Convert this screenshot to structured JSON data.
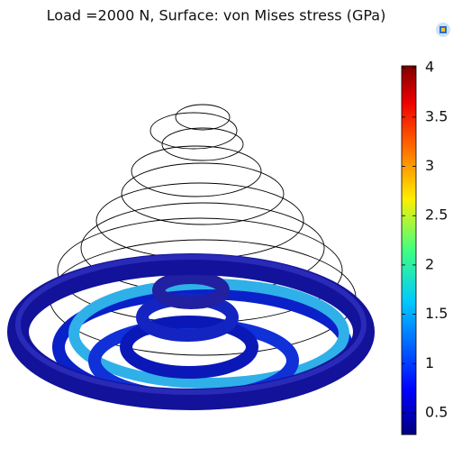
{
  "chart_data": {
    "type": "surface",
    "title": "Load =2000 N, Surface: von Mises stress (GPa)",
    "colorbar": {
      "clim": [
        0.28,
        4.02
      ],
      "ticks": [
        0.5,
        1,
        1.5,
        2,
        2.5,
        3,
        3.5,
        4
      ]
    }
  }
}
